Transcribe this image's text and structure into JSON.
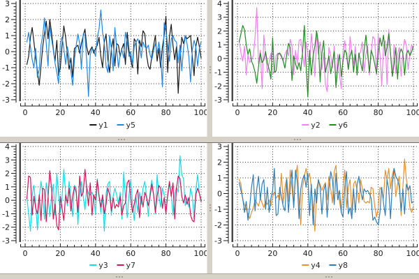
{
  "app": {
    "background_color": "#ffffff",
    "splitter_color": "#d6d2c8",
    "frame_shadow_color": "#6e6e6e",
    "axis_color": "#1a1a1a",
    "grid_color": "#2a2a2a",
    "plot_edge_bar_color": "#4b4b4b",
    "grid_style": "dotted"
  },
  "chart_data": [
    {
      "position": "top-left",
      "type": "line",
      "xlim": [
        0,
        100
      ],
      "ylim": [
        -3,
        3
      ],
      "x_ticks": [
        0,
        20,
        40,
        60,
        80,
        100
      ],
      "y_ticks": [
        3,
        2,
        1,
        0,
        -1,
        -2,
        -3
      ],
      "grid": "dotted",
      "legend_position": "bottom-center",
      "series": [
        {
          "name": "y1",
          "color": "#1a1a1a",
          "values": [
            -0.8,
            -0.3,
            0.9,
            1.5,
            0.6,
            -0.4,
            -1.2,
            -2.1,
            -0.9,
            0.3,
            1.1,
            1.9,
            0.8,
            2.0,
            1.2,
            0.2,
            -0.6,
            0.7,
            -1.5,
            -1.0,
            0.4,
            1.6,
            0.9,
            -0.2,
            -1.1,
            -0.4,
            -1.6,
            0.2,
            0.3,
            0.4,
            -0.1,
            0.5,
            1.0,
            1.4,
            0.3,
            -0.2,
            0.1,
            0.3,
            -0.1,
            0.2,
            0.4,
            0.9,
            -0.3,
            -1.0,
            0.6,
            1.1,
            -0.5,
            -1.3,
            0.2,
            0.8,
            -0.9,
            0.5,
            0.4,
            -0.3,
            0.2,
            0.5,
            -0.8,
            1.2,
            0.1,
            -0.5,
            -1.0,
            0.8,
            0.6,
            -1.4,
            0.7,
            0.3,
            1.3,
            1.1,
            -0.2,
            -0.9,
            -1.1,
            -0.3,
            0.4,
            1.0,
            -0.6,
            0.2,
            -1.0,
            0.3,
            1.0,
            2.2,
            -1.3,
            0.9,
            1.7,
            0.4,
            -0.5,
            0.3,
            -2.6,
            -0.4,
            0.9,
            0.5,
            1.0,
            0.8,
            0.9,
            1.0,
            -0.3,
            -1.5,
            0.3,
            0.9,
            0.3,
            -0.4
          ]
        },
        {
          "name": "y5",
          "color": "#1e87e8",
          "values": [
            0.6,
            1.2,
            0.3,
            -0.5,
            -1.0,
            0.2,
            -1.6,
            -1.1,
            0.4,
            1.0,
            2.1,
            0.5,
            -0.9,
            1.6,
            0.8,
            0.1,
            -0.7,
            -1.3,
            -2.0,
            0.5,
            0.9,
            0.2,
            -0.8,
            0.3,
            -0.4,
            -1.2,
            -2.1,
            -0.5,
            0.4,
            1.1,
            0.5,
            -1.1,
            1.1,
            1.0,
            -0.6,
            -2.8,
            -0.2,
            0.2,
            0.1,
            -0.3,
            0.9,
            1.4,
            2.6,
            1.2,
            0.5,
            -0.9,
            -1.3,
            1.0,
            0.2,
            -1.2,
            1.5,
            0.3,
            -1.0,
            -0.2,
            0.1,
            -0.4,
            1.2,
            0.6,
            -0.3,
            0.0,
            -0.8,
            0.3,
            0.6,
            0.8,
            0.4,
            -0.4,
            0.6,
            0.3,
            0.2,
            0.4,
            -0.2,
            -0.5,
            0.1,
            0.5,
            -0.1,
            0.6,
            -0.2,
            -2.2,
            1.8,
            1.3,
            0.4,
            -0.6,
            0.8,
            1.0,
            0.7,
            0.6,
            -0.7,
            0.4,
            -1.2,
            0.2,
            1.0,
            0.5,
            -0.3,
            -1.9,
            0.1,
            0.7,
            0.3,
            -0.9,
            0.2,
            0.6
          ]
        }
      ]
    },
    {
      "position": "top-right",
      "type": "line",
      "xlim": [
        0,
        100
      ],
      "ylim": [
        -3,
        4
      ],
      "x_ticks": [
        0,
        20,
        40,
        60,
        80,
        100
      ],
      "y_ticks": [
        4,
        3,
        2,
        1,
        0,
        -1,
        -2,
        -3
      ],
      "grid": "dotted",
      "legend_position": "bottom-center",
      "series": [
        {
          "name": "y2",
          "color": "#ee82ee",
          "values": [
            1.3,
            0.4,
            -0.2,
            0.9,
            -1.2,
            0.3,
            -0.3,
            -0.1,
            0.2,
            1.5,
            3.7,
            -0.4,
            0.6,
            -2.2,
            1.7,
            0.3,
            -1.0,
            -0.3,
            0.4,
            -1.1,
            -1.0,
            0.2,
            0.4,
            0.3,
            0.1,
            -0.2,
            0.3,
            0.6,
            0.2,
            1.4,
            0.9,
            -1.2,
            0.6,
            -0.4,
            1.3,
            1.4,
            0.3,
            -0.6,
            1.2,
            0.2,
            -0.5,
            1.8,
            0.4,
            -1.3,
            1.9,
            0.3,
            1.2,
            -0.8,
            0.4,
            -1.9,
            -2.4,
            0.8,
            0.2,
            -0.7,
            0.9,
            -2.1,
            0.3,
            -1.2,
            -2.2,
            0.4,
            1.3,
            0.2,
            -0.8,
            1.6,
            0.3,
            -0.4,
            0.9,
            -1.1,
            0.2,
            0.5,
            1.2,
            -1.0,
            0.3,
            0.9,
            -1.2,
            0.4,
            1.6,
            1.4,
            -1.2,
            1.7,
            0.3,
            -2.0,
            0.9,
            1.3,
            -1.9,
            2.1,
            0.4,
            -1.2,
            1.0,
            -1.1,
            0.3,
            0.8,
            -1.3,
            0.5,
            1.4,
            0.9,
            -0.8,
            0.3,
            1.0,
            0.6
          ]
        },
        {
          "name": "y6",
          "color": "#228b22",
          "values": [
            1.2,
            1.8,
            2.4,
            2.1,
            1.0,
            0.3,
            0.7,
            -0.2,
            -0.5,
            -1.0,
            -1.8,
            -0.6,
            0.4,
            -0.3,
            -0.1,
            0.5,
            -0.3,
            -0.8,
            -1.5,
            1.5,
            -1.0,
            -0.9,
            0.3,
            0.4,
            0.2,
            -0.2,
            -0.7,
            0.3,
            1.1,
            0.8,
            -1.6,
            0.2,
            -0.4,
            -0.8,
            -0.3,
            -0.9,
            0.4,
            2.4,
            -0.5,
            -2.8,
            0.6,
            -1.2,
            0.2,
            0.9,
            2.0,
            1.1,
            -1.7,
            0.4,
            1.3,
            -1.0,
            -0.4,
            0.2,
            -1.1,
            -0.3,
            0.5,
            -2.1,
            -0.6,
            0.3,
            -1.3,
            -0.2,
            0.6,
            0.4,
            -0.8,
            0.2,
            0.6,
            -1.0,
            0.3,
            -1.2,
            0.4,
            -0.3,
            -0.9,
            0.6,
            1.7,
            0.3,
            -1.0,
            0.6,
            0.2,
            -0.4,
            -1.1,
            0.3,
            1.5,
            0.9,
            1.7,
            0.2,
            0.8,
            1.8,
            0.4,
            -1.3,
            -0.4,
            0.8,
            -1.5,
            0.3,
            0.7,
            0.4,
            -1.2,
            0.3,
            0.6,
            0.2,
            0.5,
            0.9
          ]
        }
      ]
    },
    {
      "position": "bottom-left",
      "type": "line",
      "xlim": [
        0,
        100
      ],
      "ylim": [
        -3,
        4
      ],
      "x_ticks": [
        0,
        20,
        40,
        60,
        80,
        100
      ],
      "y_ticks": [
        4,
        3,
        2,
        1,
        0,
        -1,
        -2,
        -3
      ],
      "grid": "dotted",
      "legend_position": "bottom-center",
      "series": [
        {
          "name": "y3",
          "color": "#17dbe3",
          "values": [
            0.2,
            -1.0,
            -2.3,
            0.4,
            1.1,
            -0.3,
            -2.2,
            0.3,
            1.4,
            0.5,
            -1.4,
            1.3,
            0.4,
            -1.2,
            0.3,
            1.2,
            -1.1,
            2.0,
            0.4,
            -0.9,
            0.3,
            2.3,
            0.5,
            -0.4,
            1.4,
            0.2,
            -1.2,
            1.1,
            0.9,
            -1.8,
            0.4,
            1.4,
            0.3,
            -0.7,
            1.0,
            0.5,
            0.4,
            0.6,
            0.2,
            -1.0,
            1.6,
            0.4,
            -0.9,
            0.3,
            -2.3,
            0.5,
            1.2,
            1.4,
            -1.1,
            0.3,
            0.9,
            0.4,
            -0.3,
            0.6,
            -1.4,
            2.1,
            0.3,
            -1.3,
            0.4,
            1.5,
            -0.2,
            -1.5,
            0.3,
            -0.9,
            0.6,
            -0.3,
            0.9,
            1.4,
            0.3,
            -1.2,
            0.6,
            1.5,
            0.4,
            -1.0,
            1.9,
            0.3,
            -0.5,
            0.9,
            0.4,
            -0.8,
            0.3,
            1.2,
            0.5,
            -1.1,
            0.4,
            1.0,
            0.6,
            3.3,
            1.9,
            1.6,
            -0.4,
            0.2,
            -0.5,
            0.9,
            0.3,
            -1.4,
            0.8,
            1.9,
            0.5,
            0.1
          ]
        },
        {
          "name": "y7",
          "color": "#d4145a",
          "values": [
            0.1,
            1.8,
            1.7,
            -1.1,
            0.3,
            -0.6,
            -1.0,
            0.4,
            -1.5,
            0.9,
            0.8,
            -1.6,
            0.2,
            2.2,
            0.9,
            -1.4,
            -0.3,
            -1.9,
            -2.2,
            0.3,
            -0.6,
            -1.5,
            0.4,
            -0.2,
            0.9,
            -0.8,
            0.3,
            1.0,
            0.6,
            -0.9,
            1.8,
            0.3,
            0.6,
            2.3,
            0.9,
            -0.4,
            1.3,
            -1.1,
            0.4,
            0.0,
            1.5,
            0.3,
            -0.5,
            0.4,
            -1.0,
            -0.3,
            0.9,
            0.4,
            -0.8,
            0.2,
            -0.6,
            -0.3,
            -0.5,
            0.3,
            -1.1,
            -0.4,
            -0.2,
            1.3,
            1.5,
            0.2,
            -0.9,
            -0.3,
            0.4,
            0.8,
            -1.3,
            0.3,
            -0.5,
            0.6,
            0.2,
            -0.4,
            0.3,
            1.2,
            0.4,
            -0.9,
            0.3,
            1.1,
            0.9,
            -0.6,
            0.2,
            -1.0,
            0.4,
            1.4,
            0.3,
            1.3,
            -1.4,
            0.9,
            1.8,
            1.6,
            0.3,
            -0.2,
            0.4,
            -0.3,
            0.2,
            -1.1,
            -1.5,
            -1.6,
            0.4,
            0.9,
            0.5,
            -0.1
          ]
        }
      ]
    },
    {
      "position": "bottom-right",
      "type": "line",
      "xlim": [
        0,
        100
      ],
      "ylim": [
        -3,
        3
      ],
      "x_ticks": [
        0,
        20,
        40,
        60,
        80,
        100
      ],
      "y_ticks": [
        3,
        2,
        1,
        0,
        -1,
        -2,
        -3
      ],
      "grid": "dotted",
      "legend_position": "bottom-center",
      "series": [
        {
          "name": "y4",
          "color": "#e8912d",
          "values": [
            0.9,
            0.6,
            -0.4,
            -0.7,
            -1.0,
            -1.3,
            -1.6,
            -1.2,
            -0.9,
            -0.4,
            -0.6,
            -0.8,
            -0.3,
            -0.6,
            -0.9,
            -0.5,
            -0.7,
            -0.4,
            -0.8,
            -0.2,
            0.1,
            -0.3,
            -0.1,
            -0.4,
            1.3,
            -0.6,
            0.4,
            1.0,
            -0.5,
            1.5,
            0.3,
            -0.8,
            1.0,
            1.8,
            -0.3,
            -2.0,
            0.4,
            1.1,
            1.6,
            0.9,
            1.3,
            0.4,
            -0.9,
            -2.4,
            0.3,
            0.8,
            0.6,
            0.2,
            0.5,
            0.7,
            -0.4,
            1.1,
            0.3,
            -0.6,
            1.4,
            1.8,
            0.2,
            -0.5,
            -1.2,
            0.3,
            1.5,
            -0.9,
            0.4,
            0.9,
            -1.3,
            0.6,
            0.8,
            0.2,
            -0.6,
            0.9,
            0.3,
            -0.5,
            -0.6,
            -0.5,
            -0.6,
            0.4,
            0.3,
            -0.8,
            -1.5,
            -0.9,
            0.4,
            0.2,
            -0.3,
            1.5,
            0.9,
            1.6,
            0.3,
            1.2,
            1.6,
            -0.2,
            0.6,
            1.1,
            -1.4,
            0.4,
            2.2,
            0.9,
            0.3,
            -0.9,
            -1.2,
            -0.8
          ]
        },
        {
          "name": "y8",
          "color": "#2e7eb8",
          "values": [
            0.7,
            0.2,
            -0.3,
            -1.2,
            -0.5,
            -1.7,
            -0.8,
            0.4,
            1.2,
            -1.1,
            0.3,
            1.1,
            -0.4,
            0.6,
            0.9,
            -1.0,
            0.4,
            -1.2,
            -0.3,
            0.2,
            1.6,
            -1.4,
            -1.3,
            0.4,
            -0.2,
            -0.8,
            -1.1,
            0.9,
            -1.2,
            0.4,
            1.5,
            -0.9,
            1.5,
            0.8,
            -1.6,
            0.3,
            0.9,
            1.2,
            0.4,
            1.3,
            -1.4,
            0.6,
            -2.0,
            0.3,
            -0.6,
            0.9,
            0.4,
            -1.3,
            0.2,
            0.6,
            -1.5,
            0.3,
            1.4,
            0.9,
            -0.7,
            1.3,
            -0.4,
            0.2,
            -1.2,
            -1.5,
            0.4,
            1.4,
            -1.3,
            -0.9,
            -1.6,
            0.3,
            -1.2,
            0.6,
            1.1,
            0.2,
            -0.4,
            0.3,
            0.1,
            0.2,
            0.0,
            -0.3,
            -1.7,
            -1.5,
            -1.8,
            -2.0,
            -1.2,
            0.4,
            -0.6,
            -1.4,
            0.9,
            0.3,
            -1.6,
            0.6,
            1.6,
            1.1,
            0.9,
            0.4,
            -1.1,
            0.3,
            -1.3,
            0.6,
            0.2,
            0.5,
            -0.6,
            -0.5
          ]
        }
      ]
    }
  ]
}
